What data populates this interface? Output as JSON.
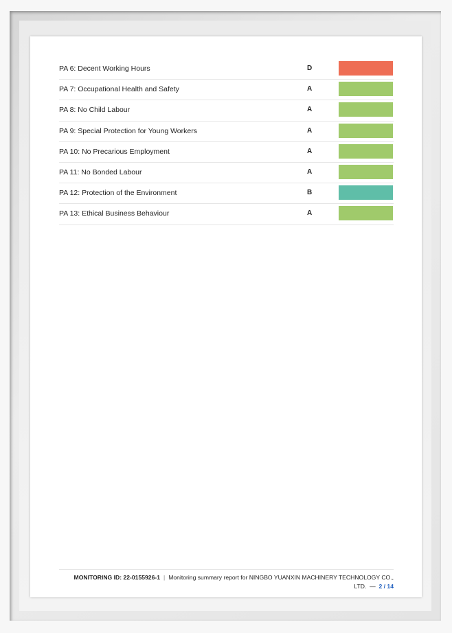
{
  "rows": [
    {
      "label": "PA 6: Decent Working Hours",
      "grade": "D",
      "color": "#ee6e55"
    },
    {
      "label": "PA 7: Occupational Health and Safety",
      "grade": "A",
      "color": "#a0ca6b"
    },
    {
      "label": "PA 8: No Child Labour",
      "grade": "A",
      "color": "#a0ca6b"
    },
    {
      "label": "PA 9: Special Protection for Young Workers",
      "grade": "A",
      "color": "#a0ca6b"
    },
    {
      "label": "PA 10: No Precarious Employment",
      "grade": "A",
      "color": "#a0ca6b"
    },
    {
      "label": "PA 11: No Bonded Labour",
      "grade": "A",
      "color": "#a0ca6b"
    },
    {
      "label": "PA 12: Protection of the Environment",
      "grade": "B",
      "color": "#5fbea8"
    },
    {
      "label": "PA 13: Ethical Business Behaviour",
      "grade": "A",
      "color": "#a0ca6b"
    }
  ],
  "footer": {
    "monitoring_id": "MONITORING ID: 22-0155926-1",
    "separator": "|",
    "description": "Monitoring summary report for NINGBO YUANXIN MACHINERY TECHNOLOGY CO., LTD.",
    "dash": "—",
    "page": "2 / 14"
  }
}
